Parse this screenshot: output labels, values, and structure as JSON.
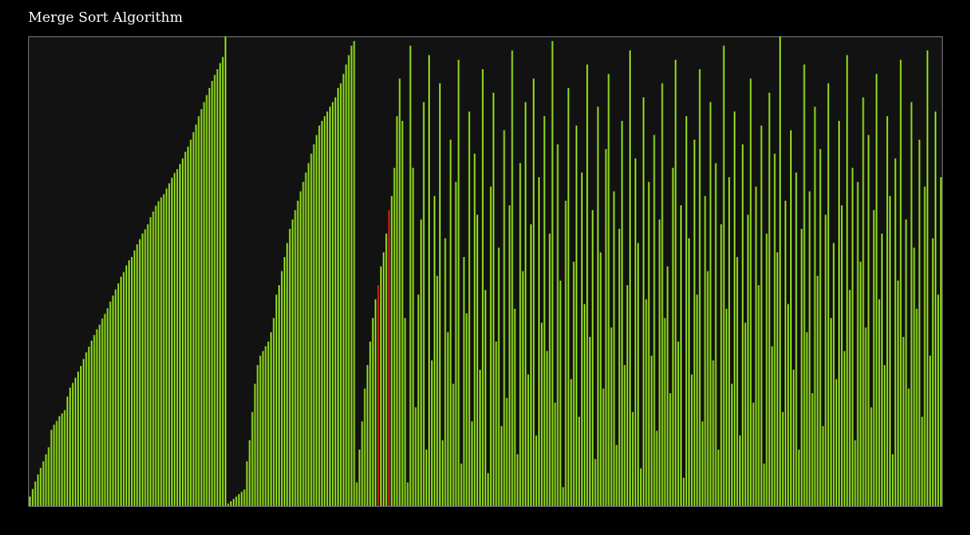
{
  "title": "Merge Sort Algorithm",
  "colors": {
    "background": "#000000",
    "plot_background": "#121212",
    "plot_border": "#6f6f6f",
    "bar": "#8ed81a",
    "bar_edge": "#5a9a10",
    "highlight": "#cc1f1a"
  },
  "chart_data": {
    "type": "bar",
    "title": "Merge Sort Algorithm",
    "xlabel": "",
    "ylabel": "",
    "grid": false,
    "ylim": [
      0,
      100
    ],
    "highlight_indices": [
      130,
      134
    ],
    "values": [
      2.0,
      3.6,
      5.2,
      6.7,
      8.1,
      9.5,
      11.0,
      12.5,
      16.2,
      17.3,
      18.1,
      19.1,
      19.7,
      20.4,
      23.3,
      25.2,
      26.2,
      27.3,
      28.6,
      29.8,
      31.3,
      32.7,
      33.9,
      35.2,
      36.4,
      37.6,
      38.6,
      39.9,
      40.9,
      42.1,
      43.5,
      44.8,
      46.1,
      47.4,
      48.8,
      49.8,
      51.2,
      52.3,
      53.0,
      54.4,
      55.7,
      56.8,
      58.0,
      58.9,
      60.0,
      61.5,
      62.7,
      63.9,
      64.9,
      65.7,
      66.4,
      67.6,
      68.7,
      69.9,
      70.9,
      71.7,
      72.8,
      74.0,
      75.4,
      76.5,
      78.0,
      79.6,
      81.2,
      83.0,
      84.5,
      86.0,
      87.5,
      89.0,
      90.5,
      91.8,
      93.0,
      94.3,
      95.6,
      100.0,
      0.5,
      1.0,
      1.5,
      2.0,
      2.5,
      3.0,
      3.5,
      9.5,
      14.0,
      20.0,
      26.0,
      30.0,
      32.0,
      33.0,
      34.0,
      35.0,
      37.0,
      40.0,
      45.0,
      47.0,
      50.0,
      53.0,
      56.0,
      59.0,
      61.0,
      63.0,
      65.0,
      67.0,
      69.0,
      71.0,
      73.0,
      75.0,
      77.0,
      79.0,
      81.0,
      82.0,
      83.0,
      84.0,
      85.0,
      86.0,
      87.0,
      89.0,
      90.0,
      92.0,
      94.0,
      96.0,
      98.0,
      99.0,
      5.0,
      12.0,
      18.0,
      25.0,
      30.0,
      35.0,
      40.0,
      44.0,
      47.0,
      51.0,
      54.0,
      58.0,
      63.0,
      66.0,
      72.0,
      83.0,
      91.0,
      82.0,
      40.0,
      5.0,
      98.0,
      72.0,
      21.0,
      45.0,
      61.0,
      86.0,
      12.0,
      96.0,
      31.0,
      66.0,
      49.0,
      90.0,
      14.0,
      57.0,
      37.0,
      78.0,
      26.0,
      69.0,
      95.0,
      9.0,
      53.0,
      41.0,
      84.0,
      18.0,
      75.0,
      62.0,
      29.0,
      93.0,
      46.0,
      7.0,
      68.0,
      88.0,
      35.0,
      55.0,
      17.0,
      80.0,
      23.0,
      64.0,
      97.0,
      42.0,
      11.0,
      73.0,
      50.0,
      86.0,
      28.0,
      60.0,
      91.0,
      15.0,
      70.0,
      39.0,
      83.0,
      33.0,
      58.0,
      99.0,
      22.0,
      77.0,
      48.0,
      4.0,
      65.0,
      89.0,
      27.0,
      52.0,
      81.0,
      19.0,
      71.0,
      43.0,
      94.0,
      36.0,
      63.0,
      10.0,
      85.0,
      54.0,
      25.0,
      76.0,
      92.0,
      38.0,
      67.0,
      13.0,
      59.0,
      82.0,
      30.0,
      47.0,
      97.0,
      20.0,
      74.0,
      56.0,
      8.0,
      87.0,
      44.0,
      69.0,
      32.0,
      79.0,
      16.0,
      61.0,
      90.0,
      40.0,
      51.0,
      24.0,
      72.0,
      95.0,
      35.0,
      64.0,
      6.0,
      83.0,
      57.0,
      28.0,
      78.0,
      45.0,
      93.0,
      18.0,
      66.0,
      50.0,
      86.0,
      31.0,
      73.0,
      12.0,
      60.0,
      98.0,
      42.0,
      70.0,
      26.0,
      84.0,
      53.0,
      15.0,
      77.0,
      39.0,
      62.0,
      91.0,
      22.0,
      68.0,
      47.0,
      81.0,
      9.0,
      58.0,
      88.0,
      34.0,
      75.0,
      54.0,
      100.0,
      20.0,
      65.0,
      43.0,
      80.0,
      29.0,
      71.0,
      12.0,
      59.0,
      94.0,
      37.0,
      67.0,
      24.0,
      85.0,
      49.0,
      76.0,
      17.0,
      62.0,
      90.0,
      40.0,
      56.0,
      27.0,
      82.0,
      64.0,
      33.0,
      96.0,
      46.0,
      72.0,
      14.0,
      69.0,
      52.0,
      87.0,
      38.0,
      79.0,
      21.0,
      63.0,
      92.0,
      44.0,
      58.0,
      30.0,
      83.0,
      66.0,
      11.0,
      74.0,
      48.0,
      95.0,
      36.0,
      61.0,
      25.0,
      86.0,
      55.0,
      42.0,
      78.0,
      19.0,
      68.0,
      97.0,
      32.0,
      57.0,
      84.0,
      45.0,
      70.0
    ]
  }
}
